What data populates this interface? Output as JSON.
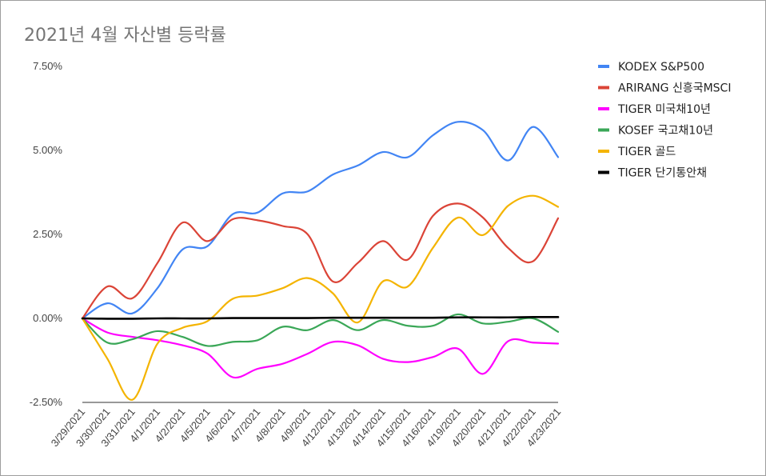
{
  "chart_data": {
    "type": "line",
    "title": "2021년 4월 자산별 등락률",
    "xlabel": "",
    "ylabel": "",
    "ylim": [
      -2.5,
      7.5
    ],
    "yticks": [
      "7.50%",
      "5.00%",
      "2.50%",
      "0.00%",
      "-2.50%"
    ],
    "ytick_values": [
      7.5,
      5.0,
      2.5,
      0.0,
      -2.5
    ],
    "grid": false,
    "legend_position": "right",
    "categories": [
      "3/29/2021",
      "3/30/2021",
      "3/31/2021",
      "4/1/2021",
      "4/2/2021",
      "4/5/2021",
      "4/6/2021",
      "4/7/2021",
      "4/8/2021",
      "4/9/2021",
      "4/12/2021",
      "4/13/2021",
      "4/14/2021",
      "4/15/2021",
      "4/16/2021",
      "4/19/2021",
      "4/20/2021",
      "4/21/2021",
      "4/22/2021",
      "4/23/2021"
    ],
    "series": [
      {
        "name": "KODEX S&P500",
        "color": "#4285f4",
        "values": [
          0.0,
          0.45,
          0.15,
          0.9,
          2.05,
          2.15,
          3.1,
          3.15,
          3.72,
          3.78,
          4.28,
          4.55,
          4.95,
          4.8,
          5.45,
          5.85,
          5.6,
          4.7,
          5.7,
          4.8
        ]
      },
      {
        "name": "ARIRANG 신흥국MSCI",
        "color": "#db4437",
        "values": [
          0.0,
          0.95,
          0.6,
          1.65,
          2.85,
          2.3,
          2.95,
          2.92,
          2.75,
          2.5,
          1.1,
          1.65,
          2.3,
          1.75,
          3.05,
          3.42,
          3.0,
          2.1,
          1.7,
          2.98
        ]
      },
      {
        "name": "TIGER 미국채10년",
        "color": "#ff00ff",
        "values": [
          0.0,
          -0.42,
          -0.55,
          -0.65,
          -0.8,
          -1.05,
          -1.75,
          -1.5,
          -1.35,
          -1.05,
          -0.7,
          -0.8,
          -1.2,
          -1.3,
          -1.15,
          -0.9,
          -1.65,
          -0.68,
          -0.72,
          -0.75
        ]
      },
      {
        "name": "KOSEF 국고채10년",
        "color": "#3aa757",
        "values": [
          0.0,
          -0.72,
          -0.62,
          -0.38,
          -0.55,
          -0.82,
          -0.7,
          -0.65,
          -0.25,
          -0.35,
          -0.05,
          -0.35,
          -0.05,
          -0.22,
          -0.22,
          0.12,
          -0.15,
          -0.1,
          0.0,
          -0.4
        ]
      },
      {
        "name": "TIGER 골드",
        "color": "#f4b400",
        "values": [
          0.0,
          -1.2,
          -2.42,
          -0.75,
          -0.28,
          -0.08,
          0.58,
          0.68,
          0.9,
          1.2,
          0.75,
          -0.12,
          1.1,
          0.95,
          2.1,
          3.0,
          2.48,
          3.35,
          3.65,
          3.32
        ]
      },
      {
        "name": "TIGER 단기통안채",
        "color": "#000000",
        "values": [
          0.0,
          -0.01,
          -0.01,
          0.0,
          0.0,
          0.0,
          0.01,
          0.01,
          0.01,
          0.01,
          0.02,
          0.02,
          0.02,
          0.02,
          0.02,
          0.03,
          0.03,
          0.03,
          0.04,
          0.04
        ]
      }
    ]
  }
}
